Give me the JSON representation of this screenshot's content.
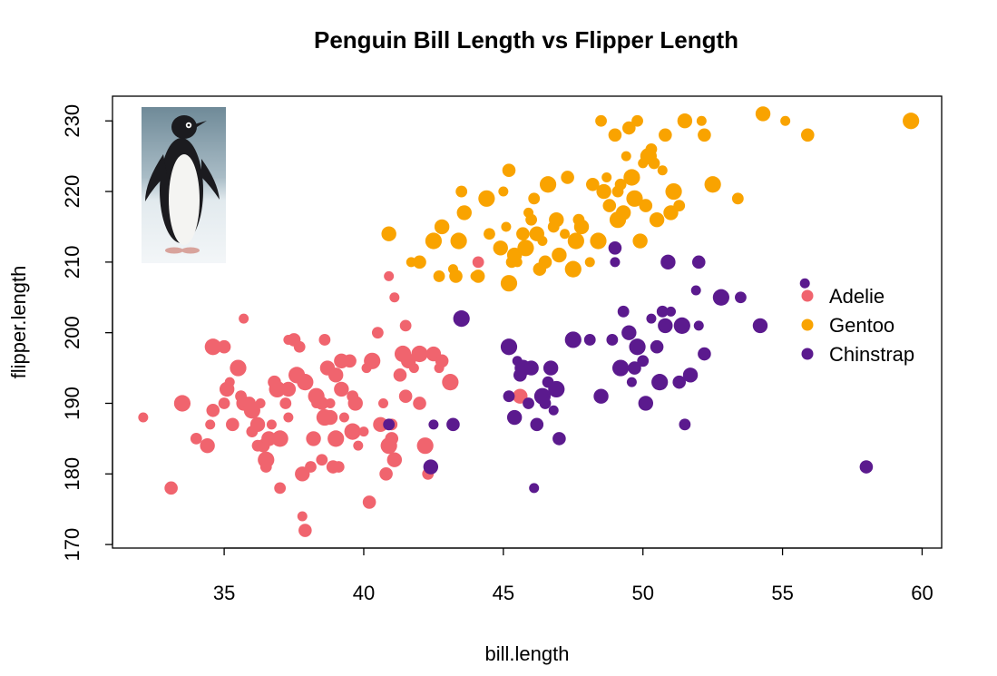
{
  "chart_data": {
    "type": "scatter",
    "title": "Penguin Bill Length vs Flipper Length",
    "xlabel": "bill.length",
    "ylabel": "flipper.length",
    "xlim": [
      31,
      60.7
    ],
    "ylim": [
      169.5,
      233.5
    ],
    "xticks": [
      35,
      40,
      45,
      50,
      55,
      60
    ],
    "yticks": [
      170,
      180,
      190,
      200,
      210,
      220,
      230
    ],
    "grid": false,
    "legend_position": "right",
    "inset_image": "adelie-penguin-photo",
    "series": [
      {
        "name": "Adelie",
        "color": "#F0646E",
        "points": [
          [
            32.1,
            188
          ],
          [
            33.1,
            178
          ],
          [
            33.5,
            190
          ],
          [
            34.0,
            185
          ],
          [
            34.4,
            184
          ],
          [
            34.5,
            187
          ],
          [
            34.6,
            189
          ],
          [
            34.6,
            198
          ],
          [
            35.0,
            190
          ],
          [
            35.1,
            192
          ],
          [
            35.2,
            193
          ],
          [
            35.3,
            187
          ],
          [
            35.5,
            195
          ],
          [
            35.6,
            191
          ],
          [
            35.7,
            190
          ],
          [
            35.7,
            202
          ],
          [
            35.9,
            190
          ],
          [
            36.0,
            189
          ],
          [
            36.0,
            186
          ],
          [
            36.2,
            187
          ],
          [
            36.3,
            190
          ],
          [
            36.4,
            184
          ],
          [
            36.5,
            182
          ],
          [
            36.5,
            181
          ],
          [
            36.6,
            185
          ],
          [
            36.7,
            187
          ],
          [
            36.8,
            193
          ],
          [
            37.0,
            185
          ],
          [
            37.2,
            190
          ],
          [
            37.3,
            192
          ],
          [
            37.3,
            199
          ],
          [
            37.5,
            199
          ],
          [
            37.6,
            194
          ],
          [
            37.7,
            198
          ],
          [
            37.8,
            180
          ],
          [
            37.8,
            174
          ],
          [
            37.9,
            172
          ],
          [
            37.9,
            193
          ],
          [
            38.1,
            181
          ],
          [
            38.2,
            185
          ],
          [
            38.3,
            190
          ],
          [
            38.5,
            190
          ],
          [
            38.6,
            188
          ],
          [
            38.6,
            199
          ],
          [
            38.8,
            188
          ],
          [
            38.8,
            190
          ],
          [
            38.9,
            181
          ],
          [
            39.0,
            185
          ],
          [
            39.1,
            181
          ],
          [
            39.2,
            192
          ],
          [
            39.3,
            188
          ],
          [
            39.5,
            196
          ],
          [
            39.6,
            186
          ],
          [
            39.6,
            191
          ],
          [
            39.7,
            190
          ],
          [
            39.8,
            184
          ],
          [
            40.2,
            176
          ],
          [
            40.3,
            196
          ],
          [
            40.5,
            200
          ],
          [
            40.6,
            187
          ],
          [
            40.7,
            190
          ],
          [
            40.8,
            180
          ],
          [
            40.9,
            184
          ],
          [
            41.0,
            187
          ],
          [
            41.1,
            182
          ],
          [
            41.1,
            205
          ],
          [
            41.3,
            194
          ],
          [
            41.4,
            197
          ],
          [
            41.5,
            201
          ],
          [
            41.6,
            196
          ],
          [
            41.8,
            195
          ],
          [
            42.0,
            190
          ],
          [
            42.2,
            184
          ],
          [
            42.3,
            180
          ],
          [
            42.5,
            197
          ],
          [
            42.7,
            195
          ],
          [
            42.8,
            196
          ],
          [
            43.1,
            193
          ],
          [
            44.1,
            210
          ],
          [
            45.6,
            191
          ],
          [
            40.9,
            208
          ],
          [
            35.0,
            198
          ],
          [
            36.9,
            192
          ],
          [
            38.5,
            182
          ],
          [
            39.2,
            196
          ],
          [
            40.1,
            195
          ],
          [
            41.0,
            185
          ],
          [
            38.3,
            191
          ],
          [
            37.0,
            178
          ],
          [
            39.0,
            194
          ],
          [
            40.0,
            186
          ],
          [
            41.5,
            191
          ],
          [
            42.0,
            197
          ],
          [
            36.2,
            184
          ],
          [
            38.7,
            195
          ],
          [
            37.3,
            188
          ]
        ]
      },
      {
        "name": "Gentoo",
        "color": "#F9A300",
        "points": [
          [
            40.9,
            214
          ],
          [
            41.7,
            210
          ],
          [
            42.0,
            210
          ],
          [
            42.5,
            213
          ],
          [
            42.7,
            208
          ],
          [
            42.8,
            215
          ],
          [
            43.2,
            209
          ],
          [
            43.3,
            208
          ],
          [
            43.4,
            213
          ],
          [
            43.5,
            220
          ],
          [
            43.6,
            217
          ],
          [
            44.0,
            208
          ],
          [
            44.1,
            208
          ],
          [
            44.4,
            219
          ],
          [
            44.5,
            214
          ],
          [
            44.9,
            212
          ],
          [
            45.1,
            215
          ],
          [
            45.2,
            223
          ],
          [
            45.2,
            207
          ],
          [
            45.3,
            210
          ],
          [
            45.4,
            211
          ],
          [
            45.5,
            210
          ],
          [
            45.7,
            214
          ],
          [
            45.8,
            212
          ],
          [
            46.1,
            219
          ],
          [
            46.2,
            214
          ],
          [
            46.4,
            213
          ],
          [
            46.5,
            210
          ],
          [
            46.6,
            221
          ],
          [
            46.8,
            215
          ],
          [
            46.9,
            216
          ],
          [
            47.2,
            214
          ],
          [
            47.3,
            222
          ],
          [
            47.5,
            209
          ],
          [
            47.7,
            216
          ],
          [
            47.8,
            215
          ],
          [
            48.1,
            210
          ],
          [
            48.2,
            221
          ],
          [
            48.4,
            213
          ],
          [
            48.5,
            230
          ],
          [
            48.6,
            220
          ],
          [
            48.7,
            222
          ],
          [
            49.0,
            228
          ],
          [
            49.1,
            216
          ],
          [
            49.2,
            221
          ],
          [
            49.3,
            217
          ],
          [
            49.4,
            225
          ],
          [
            49.5,
            229
          ],
          [
            49.6,
            222
          ],
          [
            49.8,
            230
          ],
          [
            49.9,
            213
          ],
          [
            50.0,
            224
          ],
          [
            50.1,
            218
          ],
          [
            50.2,
            225
          ],
          [
            50.4,
            224
          ],
          [
            50.5,
            216
          ],
          [
            50.7,
            223
          ],
          [
            50.8,
            228
          ],
          [
            51.1,
            220
          ],
          [
            51.3,
            218
          ],
          [
            51.5,
            230
          ],
          [
            52.1,
            230
          ],
          [
            52.2,
            228
          ],
          [
            52.5,
            221
          ],
          [
            53.4,
            219
          ],
          [
            54.3,
            231
          ],
          [
            55.1,
            230
          ],
          [
            55.9,
            228
          ],
          [
            59.6,
            230
          ],
          [
            46.0,
            216
          ],
          [
            47.0,
            211
          ],
          [
            45.9,
            217
          ],
          [
            48.8,
            218
          ],
          [
            49.7,
            219
          ],
          [
            50.3,
            226
          ],
          [
            51.0,
            217
          ],
          [
            45.0,
            220
          ],
          [
            46.3,
            209
          ],
          [
            47.6,
            213
          ],
          [
            49.1,
            220
          ]
        ]
      },
      {
        "name": "Chinstrap",
        "color": "#5B1A8E",
        "points": [
          [
            40.9,
            187
          ],
          [
            42.4,
            181
          ],
          [
            42.5,
            187
          ],
          [
            43.2,
            187
          ],
          [
            43.5,
            202
          ],
          [
            45.2,
            191
          ],
          [
            45.4,
            188
          ],
          [
            45.5,
            196
          ],
          [
            45.6,
            194
          ],
          [
            45.7,
            195
          ],
          [
            45.9,
            190
          ],
          [
            46.0,
            195
          ],
          [
            46.1,
            178
          ],
          [
            46.2,
            187
          ],
          [
            46.4,
            191
          ],
          [
            46.6,
            193
          ],
          [
            46.7,
            195
          ],
          [
            46.8,
            189
          ],
          [
            47.0,
            185
          ],
          [
            47.5,
            199
          ],
          [
            48.1,
            199
          ],
          [
            48.5,
            191
          ],
          [
            49.0,
            210
          ],
          [
            49.0,
            212
          ],
          [
            49.2,
            195
          ],
          [
            49.3,
            203
          ],
          [
            49.5,
            200
          ],
          [
            49.6,
            193
          ],
          [
            49.7,
            195
          ],
          [
            49.8,
            198
          ],
          [
            50.0,
            196
          ],
          [
            50.1,
            190
          ],
          [
            50.3,
            202
          ],
          [
            50.5,
            198
          ],
          [
            50.6,
            193
          ],
          [
            50.7,
            203
          ],
          [
            50.8,
            201
          ],
          [
            51.0,
            203
          ],
          [
            51.3,
            193
          ],
          [
            51.4,
            201
          ],
          [
            51.5,
            187
          ],
          [
            51.7,
            194
          ],
          [
            52.0,
            201
          ],
          [
            52.2,
            197
          ],
          [
            52.8,
            205
          ],
          [
            53.5,
            205
          ],
          [
            54.2,
            201
          ],
          [
            55.8,
            207
          ],
          [
            58.0,
            181
          ],
          [
            46.9,
            192
          ],
          [
            48.9,
            199
          ],
          [
            50.9,
            210
          ],
          [
            51.9,
            206
          ],
          [
            52.0,
            210
          ],
          [
            45.2,
            198
          ],
          [
            46.5,
            190
          ]
        ]
      }
    ]
  }
}
